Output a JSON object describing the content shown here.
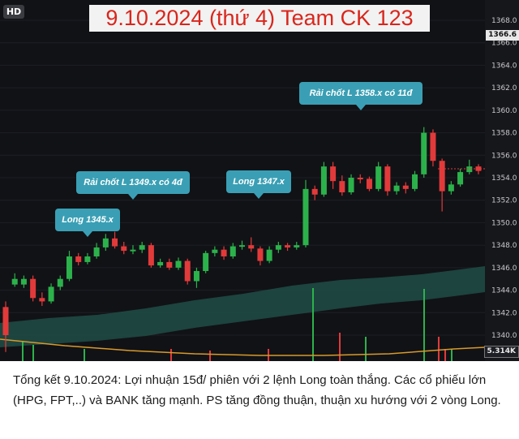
{
  "badge": "HD",
  "title": "9.10.2024 (thứ 4) Team CK 123",
  "callouts": {
    "long1": "Long 1345.x",
    "take1": "Rải chốt L 1349.x có 4đ",
    "long2": "Long 1347.x",
    "take2": "Rải chốt L 1358.x có 11đ"
  },
  "price_axis": {
    "current_price": "1366.6",
    "volume_label": "5.314K",
    "ticks": [
      "1368.0",
      "1366.0",
      "1364.0",
      "1362.0",
      "1360.0",
      "1358.0",
      "1356.0",
      "1354.0",
      "1352.0",
      "1350.0",
      "1348.0",
      "1346.0",
      "1344.0",
      "1342.0",
      "1340.0"
    ]
  },
  "colors": {
    "up": "#2cb24b",
    "down": "#e23a3a",
    "cloud": "#1f4a44",
    "accent_callout": "#3a9fb4",
    "title_text": "#d9261c"
  },
  "caption": "Tổng kết 9.10.2024: Lợi nhuận 15đ/ phiên với 2 lệnh Long toàn thắng. Các cổ phiếu lớn (HPG, FPT,..) và BANK tăng mạnh. PS tăng đồng thuận, thuận xu hướng với 2 vòng Long.",
  "chart_data": {
    "type": "candlestick",
    "ylim": [
      1339,
      1369
    ],
    "candles": [
      [
        1342.5,
        1340,
        1343.0,
        1338.5
      ],
      [
        1344.5,
        1345.0,
        1345.5,
        1344.3
      ],
      [
        1344.5,
        1345.0,
        1345.3,
        1344.2
      ],
      [
        1345.0,
        1343.3,
        1345.3,
        1343.0
      ],
      [
        1343.3,
        1343.0,
        1343.8,
        1342.6
      ],
      [
        1343.0,
        1344.3,
        1344.6,
        1342.8
      ],
      [
        1344.3,
        1345.0,
        1345.3,
        1344.0
      ],
      [
        1345.0,
        1347.0,
        1347.5,
        1344.8
      ],
      [
        1347.0,
        1346.5,
        1347.3,
        1346.2
      ],
      [
        1346.5,
        1347.0,
        1347.3,
        1346.3
      ],
      [
        1347.0,
        1347.8,
        1348.2,
        1346.8
      ],
      [
        1347.8,
        1348.6,
        1349.0,
        1347.5
      ],
      [
        1348.6,
        1347.9,
        1349.2,
        1347.7
      ],
      [
        1347.9,
        1347.5,
        1348.3,
        1347.2
      ],
      [
        1347.5,
        1347.6,
        1348.0,
        1347.2
      ],
      [
        1347.6,
        1348.0,
        1348.3,
        1347.3
      ],
      [
        1348.0,
        1346.2,
        1348.2,
        1346.0
      ],
      [
        1346.2,
        1346.5,
        1346.8,
        1346.0
      ],
      [
        1346.5,
        1346.0,
        1346.8,
        1345.8
      ],
      [
        1346.0,
        1346.6,
        1346.9,
        1345.8
      ],
      [
        1346.6,
        1344.8,
        1346.8,
        1344.5
      ],
      [
        1344.8,
        1345.7,
        1346.0,
        1344.2
      ],
      [
        1345.7,
        1347.3,
        1347.5,
        1345.5
      ],
      [
        1347.3,
        1347.6,
        1347.9,
        1347.0
      ],
      [
        1347.6,
        1347.0,
        1347.9,
        1346.7
      ],
      [
        1347.0,
        1347.9,
        1348.2,
        1346.8
      ],
      [
        1347.9,
        1348.0,
        1348.4,
        1347.6
      ],
      [
        1348.0,
        1347.7,
        1348.7,
        1347.4
      ],
      [
        1347.7,
        1346.6,
        1347.9,
        1346.2
      ],
      [
        1346.6,
        1347.6,
        1347.9,
        1346.4
      ],
      [
        1347.6,
        1348.0,
        1348.3,
        1347.3
      ],
      [
        1348.0,
        1347.8,
        1348.2,
        1347.5
      ],
      [
        1347.8,
        1348.0,
        1348.3,
        1347.6
      ],
      [
        1348.0,
        1353.0,
        1353.8,
        1347.8
      ],
      [
        1353.0,
        1352.5,
        1353.3,
        1352.0
      ],
      [
        1352.5,
        1355.0,
        1355.4,
        1352.3
      ],
      [
        1355.0,
        1353.7,
        1355.4,
        1353.0
      ],
      [
        1353.7,
        1352.7,
        1354.2,
        1352.4
      ],
      [
        1352.7,
        1354.0,
        1354.3,
        1352.5
      ],
      [
        1354.0,
        1353.9,
        1354.3,
        1353.5
      ],
      [
        1353.9,
        1353.0,
        1354.1,
        1352.8
      ],
      [
        1353.0,
        1355.0,
        1355.4,
        1352.8
      ],
      [
        1355.0,
        1352.8,
        1355.2,
        1352.4
      ],
      [
        1352.8,
        1353.3,
        1353.6,
        1352.5
      ],
      [
        1353.3,
        1353.0,
        1353.6,
        1352.6
      ],
      [
        1353.0,
        1354.3,
        1354.6,
        1352.8
      ],
      [
        1354.3,
        1358.0,
        1358.5,
        1354.0
      ],
      [
        1358.0,
        1355.5,
        1358.3,
        1355.0
      ],
      [
        1355.5,
        1352.8,
        1355.7,
        1351.0
      ],
      [
        1352.8,
        1353.4,
        1353.7,
        1352.5
      ],
      [
        1353.4,
        1354.5,
        1354.8,
        1353.2
      ],
      [
        1354.5,
        1355.0,
        1355.6,
        1354.3
      ],
      [
        1355.0,
        1354.6,
        1355.2,
        1354.3
      ]
    ]
  }
}
